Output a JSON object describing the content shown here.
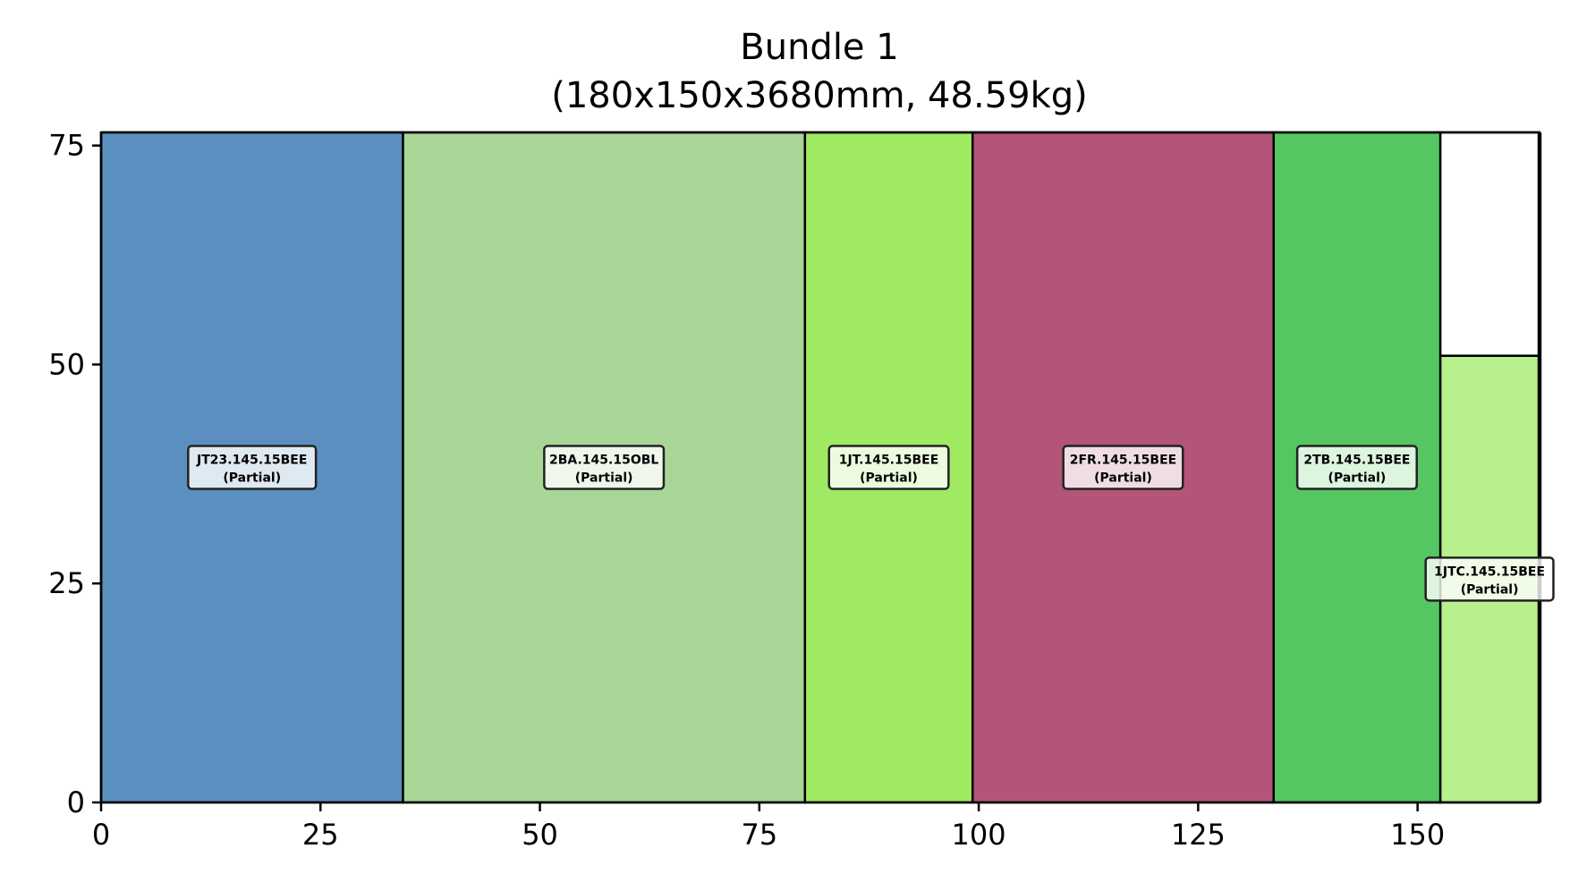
{
  "chart_data": {
    "type": "bar",
    "title_lines": [
      "Bundle 1",
      "(180x150x3680mm, 48.59kg)"
    ],
    "xlabel": "",
    "ylabel": "",
    "xlim": [
      0,
      164
    ],
    "ylim": [
      0,
      76.5
    ],
    "xticks": [
      0,
      25,
      50,
      75,
      100,
      125,
      150
    ],
    "yticks": [
      0,
      25,
      50,
      75
    ],
    "grid": false,
    "pieces": [
      {
        "label": "JT23.145.15BEE",
        "status": "(Partial)",
        "x0": 0,
        "x1": 34.4,
        "y0": 0,
        "y1": 76.5,
        "color": "#5b8fbf"
      },
      {
        "label": "2BA.145.15OBL",
        "status": "(Partial)",
        "x0": 34.4,
        "x1": 80.2,
        "y0": 0,
        "y1": 76.5,
        "color": "#a9d696"
      },
      {
        "label": "1JT.145.15BEE",
        "status": "(Partial)",
        "x0": 80.2,
        "x1": 99.3,
        "y0": 0,
        "y1": 76.5,
        "color": "#a0ea63"
      },
      {
        "label": "2FR.145.15BEE",
        "status": "(Partial)",
        "x0": 99.3,
        "x1": 133.6,
        "y0": 0,
        "y1": 76.5,
        "color": "#b35479"
      },
      {
        "label": "2TB.145.15BEE",
        "status": "(Partial)",
        "x0": 133.6,
        "x1": 152.6,
        "y0": 0,
        "y1": 76.5,
        "color": "#55c662"
      },
      {
        "label": "1JTC.145.15BEE",
        "status": "(Partial)",
        "x0": 152.6,
        "x1": 163.8,
        "y0": 0,
        "y1": 51.0,
        "color": "#b7f08c"
      },
      {
        "label": "",
        "status": "",
        "x0": 152.6,
        "x1": 163.8,
        "y0": 51.0,
        "y1": 76.5,
        "color": "#ffffff"
      }
    ]
  }
}
